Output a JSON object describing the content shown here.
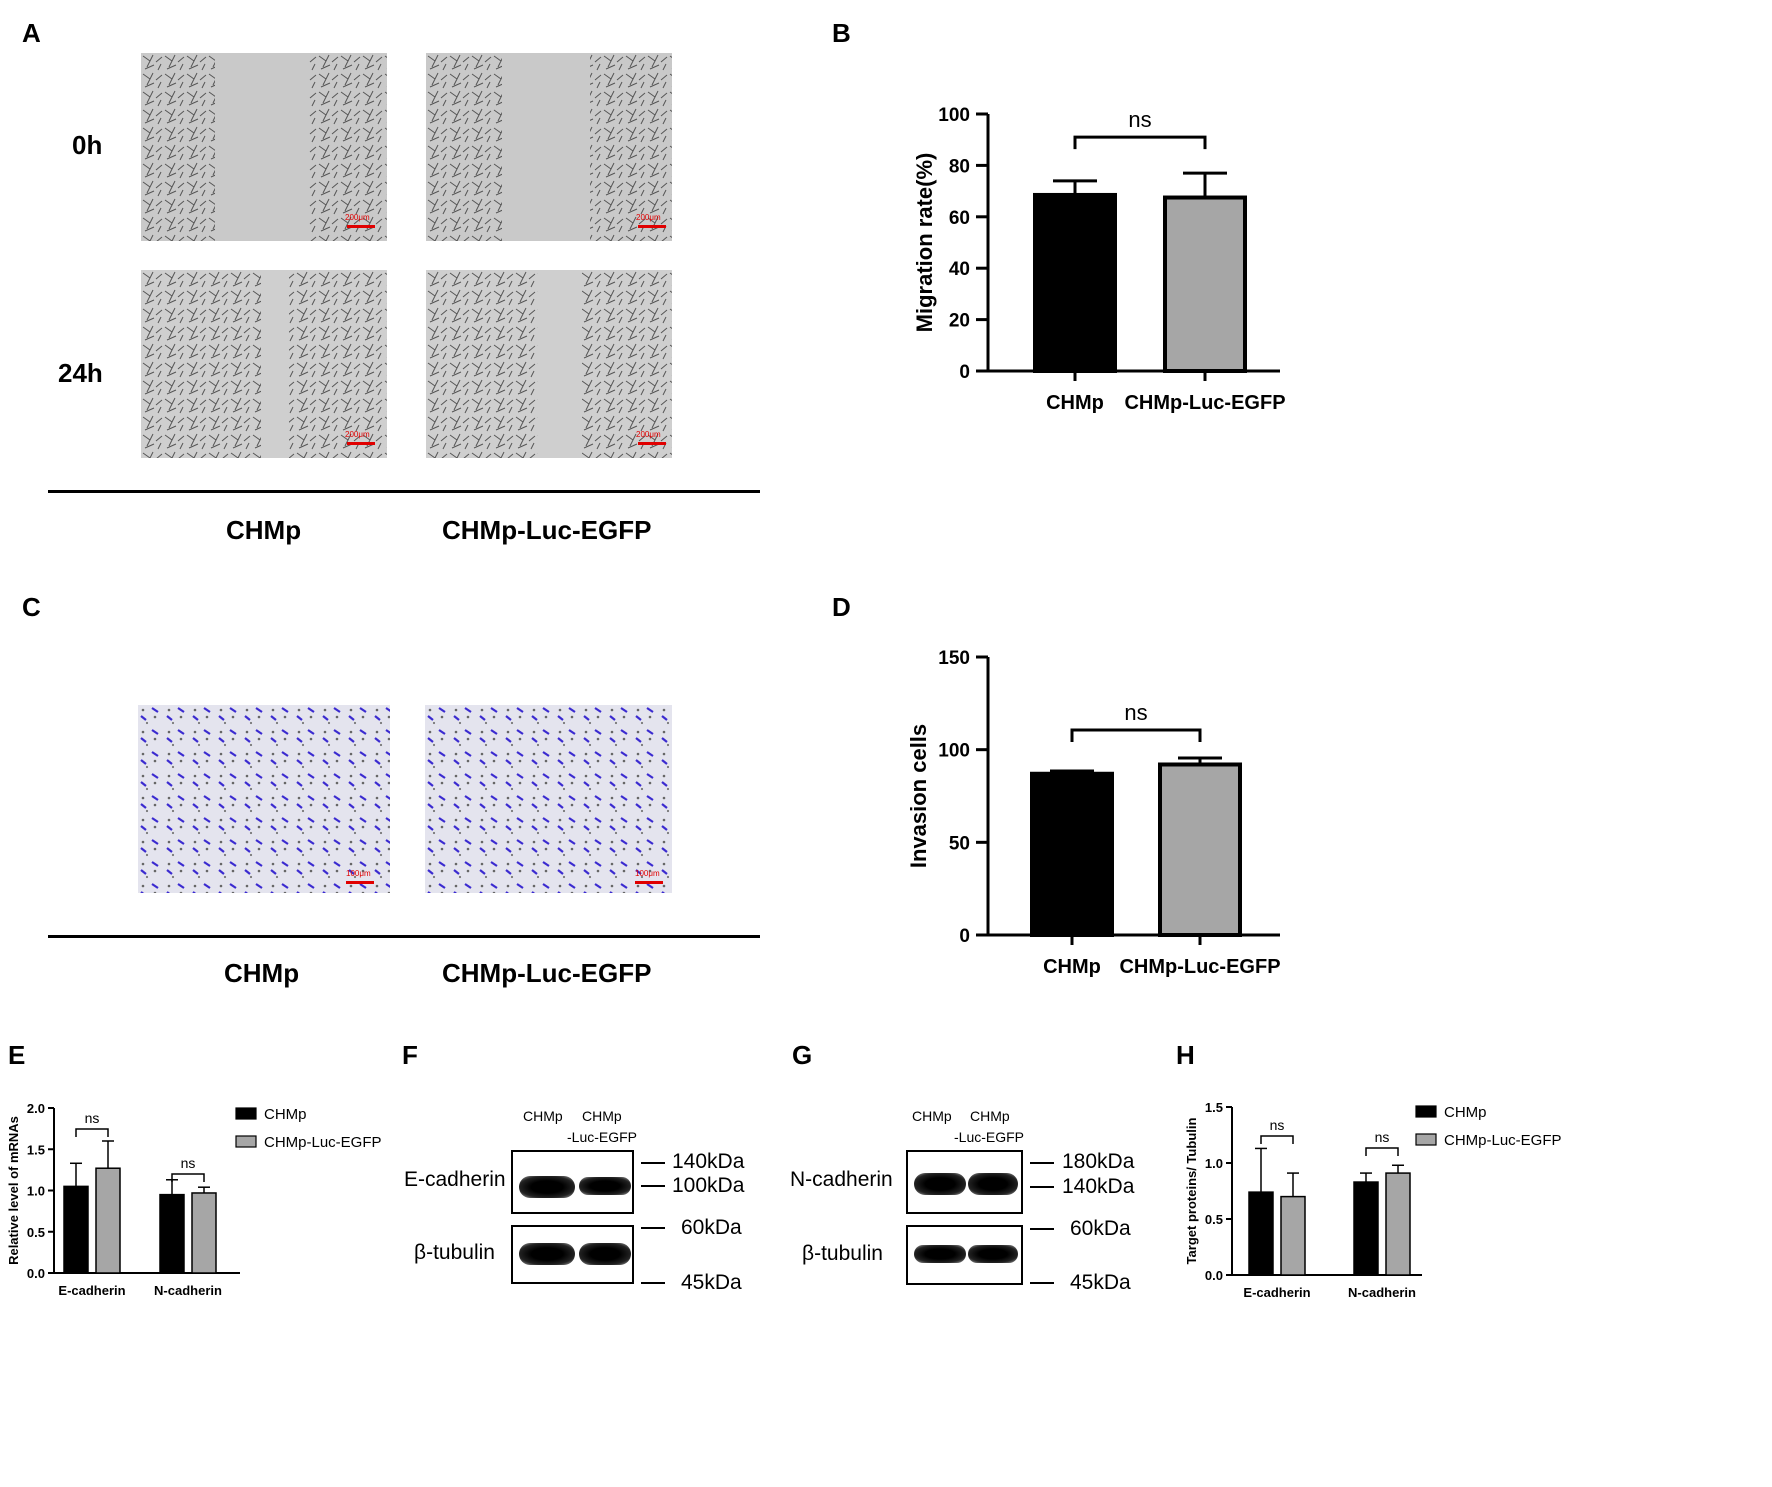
{
  "panels": {
    "A": {
      "label": "A",
      "rows": [
        "0h",
        "24h"
      ],
      "groups": [
        "CHMp",
        "CHMp-Luc-EGFP"
      ],
      "scale_bars": [
        "200μm",
        "200μm",
        "200μm",
        "200μm"
      ]
    },
    "B": {
      "label": "B"
    },
    "C": {
      "label": "C",
      "groups": [
        "CHMp",
        "CHMp-Luc-EGFP"
      ],
      "scale_bars": [
        "100μm",
        "100μm"
      ]
    },
    "D": {
      "label": "D"
    },
    "E": {
      "label": "E"
    },
    "F": {
      "label": "F",
      "lanes": [
        "CHMp",
        "CHMp",
        "-Luc-EGFP"
      ],
      "targets": [
        "E-cadherin",
        "β-tubulin"
      ],
      "markers": [
        "140kDa",
        "100kDa",
        "60kDa",
        "45kDa"
      ]
    },
    "G": {
      "label": "G",
      "lanes": [
        "CHMp",
        "CHMp",
        "-Luc-EGFP"
      ],
      "targets": [
        "N-cadherin",
        "β-tubulin"
      ],
      "markers": [
        "180kDa",
        "140kDa",
        "60kDa",
        "45kDa"
      ]
    },
    "H": {
      "label": "H"
    }
  },
  "colors": {
    "chmp": "#000000",
    "luc": "#a6a6a6",
    "crystal_violet": "#3b2bd0",
    "scale_bar": "#e00000"
  },
  "chart_data": [
    {
      "id": "B",
      "type": "bar",
      "categories": [
        "CHMp",
        "CHMp-Luc-EGFP"
      ],
      "values": [
        68.5,
        67.5
      ],
      "errors": [
        5.5,
        9.5
      ],
      "ylabel": "Migration rate(%)",
      "ylim": [
        0,
        100
      ],
      "yticks": [
        "0",
        "20",
        "40",
        "60",
        "80",
        "100"
      ],
      "significance": "ns"
    },
    {
      "id": "D",
      "type": "bar",
      "categories": [
        "CHMp",
        "CHMp-Luc-EGFP"
      ],
      "values": [
        87,
        92
      ],
      "errors": [
        1.5,
        3.5
      ],
      "ylabel": "Invasion cells",
      "ylim": [
        0,
        150
      ],
      "yticks": [
        "0",
        "50",
        "100",
        "150"
      ],
      "significance": "ns"
    },
    {
      "id": "E",
      "type": "bar",
      "categories": [
        "E-cadherin",
        "N-cadherin"
      ],
      "series": [
        {
          "name": "CHMp",
          "values": [
            1.05,
            0.95
          ],
          "errors": [
            0.28,
            0.18
          ]
        },
        {
          "name": "CHMp-Luc-EGFP",
          "values": [
            1.27,
            0.97
          ],
          "errors": [
            0.33,
            0.07
          ]
        }
      ],
      "ylabel": "Relative level of mRNAs",
      "ylim": [
        0,
        2.0
      ],
      "yticks": [
        "0.0",
        "0.5",
        "1.0",
        "1.5",
        "2.0"
      ],
      "significance": [
        "ns",
        "ns"
      ],
      "legend": "right"
    },
    {
      "id": "H",
      "type": "bar",
      "categories": [
        "E-cadherin",
        "N-cadherin"
      ],
      "series": [
        {
          "name": "CHMp",
          "values": [
            0.74,
            0.83
          ],
          "errors": [
            0.39,
            0.08
          ]
        },
        {
          "name": "CHMp-Luc-EGFP",
          "values": [
            0.7,
            0.91
          ],
          "errors": [
            0.21,
            0.07
          ]
        }
      ],
      "ylabel": "Target proteins/ Tubulin",
      "ylim": [
        0,
        1.5
      ],
      "yticks": [
        "0.0",
        "0.5",
        "1.0",
        "1.5"
      ],
      "significance": [
        "ns",
        "ns"
      ],
      "legend": "right"
    }
  ]
}
